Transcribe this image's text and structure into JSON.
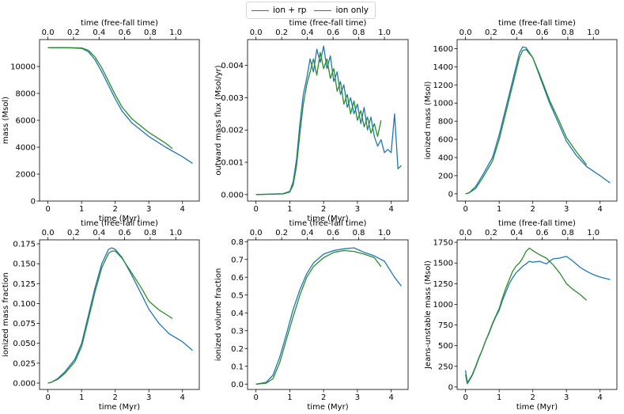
{
  "legend": {
    "position": "top-center",
    "entries": [
      {
        "label": "ion + rp",
        "color": "#1f77b4"
      },
      {
        "label": "ion only",
        "color": "#2a8c2a"
      }
    ]
  },
  "chart_data": [
    {
      "type": "line",
      "xlabel": "time (Myr)",
      "ylabel": "mass (Msol)",
      "top_xlabel": "time (free-fall time)",
      "xlim": [
        -0.25,
        4.5
      ],
      "ylim": [
        0,
        12000
      ],
      "xticks": [
        0,
        1,
        2,
        3,
        4
      ],
      "xticklabels": [
        "0",
        "1",
        "2",
        "3",
        "4"
      ],
      "top_ticks": [
        0.0,
        0.2,
        0.4,
        0.6,
        0.8,
        1.0
      ],
      "top_ticklabels": [
        "0.0",
        "0.2",
        "0.4",
        "0.6",
        "0.8",
        "1.0"
      ],
      "yticks": [
        0,
        2000,
        4000,
        6000,
        8000,
        10000
      ],
      "yticklabels": [
        "0",
        "2000",
        "4000",
        "6000",
        "8000",
        "10000"
      ],
      "series": [
        {
          "name": "ion + rp",
          "color": "#1f77b4",
          "x": [
            0,
            0.5,
            1.0,
            1.2,
            1.4,
            1.6,
            1.8,
            2.0,
            2.2,
            2.5,
            3.0,
            3.5,
            4.0,
            4.3
          ],
          "y": [
            11400,
            11400,
            11350,
            11100,
            10500,
            9600,
            8600,
            7600,
            6700,
            5800,
            4800,
            4000,
            3300,
            2800
          ]
        },
        {
          "name": "ion only",
          "color": "#2a8c2a",
          "x": [
            0,
            0.5,
            1.0,
            1.2,
            1.4,
            1.6,
            1.8,
            2.0,
            2.2,
            2.5,
            3.0,
            3.5,
            3.7
          ],
          "y": [
            11400,
            11400,
            11380,
            11200,
            10700,
            9900,
            8900,
            7900,
            7000,
            6100,
            5100,
            4300,
            3900
          ]
        }
      ]
    },
    {
      "type": "line",
      "xlabel": "time (Myr)",
      "ylabel": "outward mass flux (Msol/yr)",
      "top_xlabel": "time (free-fall time)",
      "xlim": [
        -0.25,
        4.5
      ],
      "ylim": [
        -0.0002,
        0.0048
      ],
      "xticks": [
        0,
        1,
        2,
        3,
        4
      ],
      "xticklabels": [
        "0",
        "1",
        "2",
        "3",
        "4"
      ],
      "top_ticks": [
        0.0,
        0.2,
        0.4,
        0.6,
        0.8,
        1.0
      ],
      "top_ticklabels": [
        "0.0",
        "0.2",
        "0.4",
        "0.6",
        "0.8",
        "1.0"
      ],
      "yticks": [
        0,
        0.001,
        0.002,
        0.003,
        0.004
      ],
      "yticklabels": [
        "0.000",
        "0.001",
        "0.002",
        "0.003",
        "0.004"
      ],
      "series": [
        {
          "name": "ion + rp",
          "color": "#1f77b4",
          "x": [
            0,
            0.8,
            1.0,
            1.1,
            1.2,
            1.3,
            1.4,
            1.5,
            1.6,
            1.7,
            1.8,
            1.9,
            2.0,
            2.1,
            2.2,
            2.3,
            2.4,
            2.5,
            2.6,
            2.7,
            2.8,
            2.9,
            3.0,
            3.1,
            3.2,
            3.3,
            3.4,
            3.5,
            3.6,
            3.7,
            3.8,
            3.9,
            4.0,
            4.1,
            4.2,
            4.3
          ],
          "y": [
            0,
            3e-05,
            0.0001,
            0.0004,
            0.0011,
            0.0022,
            0.0031,
            0.0036,
            0.0042,
            0.0038,
            0.0045,
            0.0041,
            0.0046,
            0.0039,
            0.0043,
            0.0035,
            0.0038,
            0.0031,
            0.0034,
            0.0027,
            0.003,
            0.0025,
            0.0028,
            0.0022,
            0.0027,
            0.002,
            0.0024,
            0.0018,
            0.0015,
            0.0017,
            0.0013,
            0.0014,
            0.0013,
            0.0025,
            0.0008,
            0.0009
          ]
        },
        {
          "name": "ion only",
          "color": "#2a8c2a",
          "x": [
            0,
            0.8,
            1.0,
            1.1,
            1.2,
            1.3,
            1.4,
            1.5,
            1.6,
            1.7,
            1.8,
            1.9,
            2.0,
            2.1,
            2.2,
            2.3,
            2.4,
            2.5,
            2.6,
            2.7,
            2.8,
            2.9,
            3.0,
            3.1,
            3.2,
            3.3,
            3.4,
            3.5,
            3.6,
            3.7
          ],
          "y": [
            0,
            2e-05,
            8e-05,
            0.0003,
            0.0009,
            0.0019,
            0.0028,
            0.0034,
            0.0038,
            0.0042,
            0.0037,
            0.0044,
            0.0039,
            0.0042,
            0.0036,
            0.0039,
            0.0032,
            0.0035,
            0.0028,
            0.0031,
            0.0025,
            0.0029,
            0.0023,
            0.0026,
            0.0021,
            0.0024,
            0.0019,
            0.0022,
            0.0018,
            0.0023
          ]
        }
      ]
    },
    {
      "type": "line",
      "xlabel": "",
      "ylabel": "ionized mass (Msol)",
      "top_xlabel": "time (free-fall time)",
      "xlim": [
        -0.25,
        4.5
      ],
      "ylim": [
        -80,
        1700
      ],
      "xticks": [
        0,
        1,
        2,
        3,
        4
      ],
      "xticklabels": [
        "0",
        "1",
        "2",
        "3",
        "4"
      ],
      "top_ticks": [
        0.0,
        0.2,
        0.4,
        0.6,
        0.8,
        1.0
      ],
      "top_ticklabels": [
        "0.0",
        "0.2",
        "0.4",
        "0.6",
        "0.8",
        "1.0"
      ],
      "yticks": [
        0,
        200,
        400,
        600,
        800,
        1000,
        1200,
        1400,
        1600
      ],
      "yticklabels": [
        "0",
        "200",
        "400",
        "600",
        "800",
        "1000",
        "1200",
        "1400",
        "1600"
      ],
      "series": [
        {
          "name": "ion + rp",
          "color": "#1f77b4",
          "x": [
            0,
            0.1,
            0.3,
            0.5,
            0.8,
            1.0,
            1.2,
            1.4,
            1.6,
            1.7,
            1.8,
            2.0,
            2.2,
            2.5,
            2.8,
            3.0,
            3.3,
            3.6,
            4.0,
            4.3
          ],
          "y": [
            0,
            10,
            80,
            200,
            400,
            650,
            950,
            1250,
            1550,
            1620,
            1610,
            1500,
            1300,
            1000,
            750,
            580,
            420,
            300,
            200,
            120
          ]
        },
        {
          "name": "ion only",
          "color": "#2a8c2a",
          "x": [
            0,
            0.1,
            0.3,
            0.5,
            0.8,
            1.0,
            1.2,
            1.4,
            1.6,
            1.7,
            1.8,
            2.0,
            2.2,
            2.5,
            2.8,
            3.0,
            3.3,
            3.6
          ],
          "y": [
            0,
            8,
            60,
            170,
            360,
            600,
            900,
            1200,
            1500,
            1580,
            1590,
            1500,
            1320,
            1030,
            790,
            620,
            460,
            320
          ]
        }
      ]
    },
    {
      "type": "line",
      "xlabel": "time (Myr)",
      "ylabel": "ionized mass fraction",
      "top_xlabel": "time (free-fall time)",
      "xlim": [
        -0.25,
        4.5
      ],
      "ylim": [
        -0.008,
        0.18
      ],
      "xticks": [
        0,
        1,
        2,
        3,
        4
      ],
      "xticklabels": [
        "0",
        "1",
        "2",
        "3",
        "4"
      ],
      "top_ticks": [
        0.0,
        0.2,
        0.4,
        0.6,
        0.8,
        1.0
      ],
      "top_ticklabels": [
        "0.0",
        "0.2",
        "0.4",
        "0.6",
        "0.8",
        "1.0"
      ],
      "yticks": [
        0,
        0.025,
        0.05,
        0.075,
        0.1,
        0.125,
        0.15,
        0.175
      ],
      "yticklabels": [
        "0.000",
        "0.025",
        "0.050",
        "0.075",
        "0.100",
        "0.125",
        "0.150",
        "0.175"
      ],
      "series": [
        {
          "name": "ion + rp",
          "color": "#1f77b4",
          "x": [
            0,
            0.1,
            0.3,
            0.5,
            0.8,
            1.0,
            1.2,
            1.4,
            1.6,
            1.8,
            1.9,
            2.0,
            2.2,
            2.5,
            2.8,
            3.0,
            3.3,
            3.6,
            4.0,
            4.3
          ],
          "y": [
            0,
            0.001,
            0.006,
            0.014,
            0.03,
            0.05,
            0.085,
            0.12,
            0.15,
            0.168,
            0.17,
            0.168,
            0.158,
            0.135,
            0.11,
            0.093,
            0.075,
            0.062,
            0.052,
            0.041
          ]
        },
        {
          "name": "ion only",
          "color": "#2a8c2a",
          "x": [
            0,
            0.1,
            0.3,
            0.5,
            0.8,
            1.0,
            1.2,
            1.4,
            1.6,
            1.8,
            1.9,
            2.0,
            2.2,
            2.5,
            2.8,
            3.0,
            3.3,
            3.6,
            3.7
          ],
          "y": [
            0,
            0.001,
            0.005,
            0.012,
            0.027,
            0.046,
            0.08,
            0.115,
            0.145,
            0.163,
            0.166,
            0.166,
            0.157,
            0.138,
            0.118,
            0.103,
            0.092,
            0.084,
            0.081
          ]
        }
      ]
    },
    {
      "type": "line",
      "xlabel": "time (Myr)",
      "ylabel": "ionized volume fraction",
      "top_xlabel": "time (free-fall time)",
      "xlim": [
        -0.25,
        4.5
      ],
      "ylim": [
        -0.03,
        0.81
      ],
      "xticks": [
        0,
        1,
        2,
        3,
        4
      ],
      "xticklabels": [
        "0",
        "1",
        "2",
        "3",
        "4"
      ],
      "top_ticks": [
        0.0,
        0.2,
        0.4,
        0.6,
        0.8,
        1.0
      ],
      "top_ticklabels": [
        "0.0",
        "0.2",
        "0.4",
        "0.6",
        "0.8",
        "1.0"
      ],
      "yticks": [
        0,
        0.1,
        0.2,
        0.3,
        0.4,
        0.5,
        0.6,
        0.7,
        0.8
      ],
      "yticklabels": [
        "0.0",
        "0.1",
        "0.2",
        "0.3",
        "0.4",
        "0.5",
        "0.6",
        "0.7",
        "0.8"
      ],
      "series": [
        {
          "name": "ion + rp",
          "color": "#1f77b4",
          "x": [
            0,
            0.3,
            0.5,
            0.7,
            0.9,
            1.1,
            1.3,
            1.5,
            1.7,
            2.0,
            2.3,
            2.6,
            2.9,
            3.2,
            3.5,
            3.8,
            4.1,
            4.3
          ],
          "y": [
            0,
            0.01,
            0.05,
            0.15,
            0.28,
            0.42,
            0.53,
            0.62,
            0.68,
            0.73,
            0.75,
            0.76,
            0.765,
            0.74,
            0.72,
            0.69,
            0.6,
            0.55
          ]
        },
        {
          "name": "ion only",
          "color": "#2a8c2a",
          "x": [
            0,
            0.3,
            0.5,
            0.7,
            0.9,
            1.1,
            1.3,
            1.5,
            1.7,
            2.0,
            2.3,
            2.6,
            2.9,
            3.2,
            3.5,
            3.7
          ],
          "y": [
            0,
            0.005,
            0.03,
            0.12,
            0.25,
            0.38,
            0.5,
            0.6,
            0.66,
            0.71,
            0.74,
            0.75,
            0.745,
            0.73,
            0.71,
            0.66
          ]
        }
      ]
    },
    {
      "type": "line",
      "xlabel": "time (Myr)",
      "ylabel": "Jeans-unstable mass (Msol)",
      "top_xlabel": "time (free-fall time)",
      "xlim": [
        -0.25,
        4.5
      ],
      "ylim": [
        -30,
        1780
      ],
      "xticks": [
        0,
        1,
        2,
        3,
        4
      ],
      "xticklabels": [
        "0",
        "1",
        "2",
        "3",
        "4"
      ],
      "top_ticks": [
        0.0,
        0.2,
        0.4,
        0.6,
        0.8,
        1.0
      ],
      "top_ticklabels": [
        "0.0",
        "0.2",
        "0.4",
        "0.6",
        "0.8",
        "1.0"
      ],
      "yticks": [
        0,
        250,
        500,
        750,
        1000,
        1250,
        1500,
        1750
      ],
      "yticklabels": [
        "0",
        "250",
        "500",
        "750",
        "1000",
        "1250",
        "1500",
        "1750"
      ],
      "series": [
        {
          "name": "ion + rp",
          "color": "#1f77b4",
          "x": [
            0,
            0.05,
            0.1,
            0.2,
            0.3,
            0.4,
            0.5,
            0.6,
            0.7,
            0.8,
            0.9,
            1.0,
            1.1,
            1.2,
            1.3,
            1.4,
            1.5,
            1.6,
            1.7,
            1.8,
            1.9,
            2.0,
            2.2,
            2.4,
            2.6,
            2.8,
            3.0,
            3.2,
            3.4,
            3.6,
            3.8,
            4.0,
            4.2,
            4.3
          ],
          "y": [
            200,
            60,
            80,
            150,
            250,
            360,
            450,
            560,
            650,
            760,
            850,
            930,
            1050,
            1150,
            1250,
            1320,
            1380,
            1420,
            1460,
            1490,
            1520,
            1510,
            1520,
            1490,
            1550,
            1560,
            1580,
            1520,
            1450,
            1400,
            1360,
            1330,
            1310,
            1300
          ]
        },
        {
          "name": "ion only",
          "color": "#2a8c2a",
          "x": [
            0,
            0.05,
            0.1,
            0.2,
            0.3,
            0.4,
            0.5,
            0.6,
            0.7,
            0.8,
            0.9,
            1.0,
            1.1,
            1.2,
            1.3,
            1.4,
            1.5,
            1.6,
            1.7,
            1.8,
            1.9,
            2.0,
            2.2,
            2.4,
            2.6,
            2.8,
            3.0,
            3.2,
            3.4,
            3.6
          ],
          "y": [
            150,
            40,
            70,
            140,
            240,
            350,
            450,
            560,
            660,
            770,
            860,
            950,
            1080,
            1200,
            1300,
            1400,
            1460,
            1500,
            1560,
            1640,
            1680,
            1650,
            1600,
            1560,
            1480,
            1380,
            1250,
            1180,
            1120,
            1050
          ]
        }
      ]
    }
  ]
}
